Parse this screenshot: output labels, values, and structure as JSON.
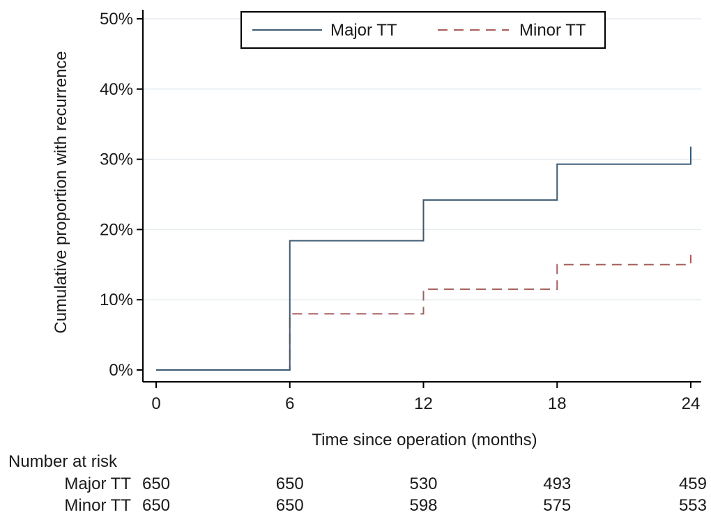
{
  "chart_data": {
    "type": "line",
    "step": true,
    "title": "",
    "xlabel": "Time since operation (months)",
    "ylabel": "Cumulative proportion with recurrence",
    "xlim": [
      0,
      24
    ],
    "ylim": [
      0,
      0.5
    ],
    "x_ticks": [
      0,
      6,
      12,
      18,
      24
    ],
    "x_tick_labels": [
      "0",
      "6",
      "12",
      "18",
      "24"
    ],
    "y_ticks": [
      0,
      0.1,
      0.2,
      0.3,
      0.4,
      0.5
    ],
    "y_tick_labels": [
      "0%",
      "10%",
      "20%",
      "30%",
      "40%",
      "50%"
    ],
    "grid": "horizontal",
    "legend": "top-center",
    "series": [
      {
        "name": "Major TT",
        "color": "#3c5a73",
        "dash": "solid",
        "x": [
          0,
          6,
          12,
          18,
          24
        ],
        "y": [
          0,
          0.184,
          0.242,
          0.293,
          0.318
        ]
      },
      {
        "name": "Minor TT",
        "color": "#a85e5e",
        "dash": "dashed",
        "x": [
          0,
          6,
          12,
          18,
          24
        ],
        "y": [
          0,
          0.08,
          0.115,
          0.15,
          0.164
        ]
      }
    ],
    "risk_table": {
      "title": "Number at risk",
      "times": [
        0,
        6,
        12,
        18,
        24
      ],
      "rows": [
        {
          "label": "Major TT",
          "values": [
            "650",
            "650",
            "530",
            "493",
            "459"
          ]
        },
        {
          "label": "Minor TT",
          "values": [
            "650",
            "650",
            "598",
            "575",
            "553"
          ]
        }
      ]
    }
  }
}
